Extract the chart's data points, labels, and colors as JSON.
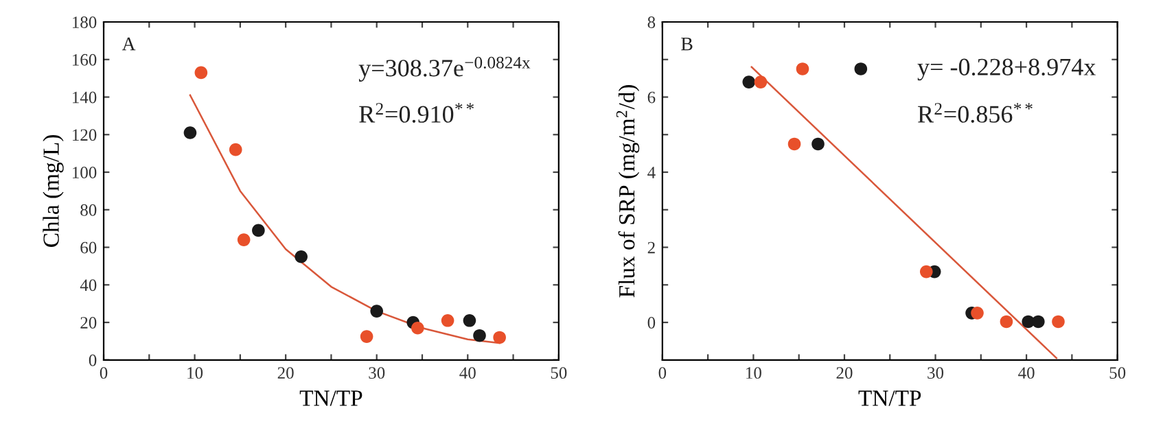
{
  "chart_data": [
    {
      "type": "scatter",
      "xlabel": "TN/TP",
      "ylabel": "Chla (mg/L)",
      "annotations": [
        "A",
        "y=308.37e$^{−0.0824x}$",
        "R$^{2}$=0.910$^{**}$"
      ],
      "xlim": [
        0,
        50
      ],
      "ylim": [
        0,
        180
      ],
      "xticks": [
        0,
        {
          "value": 5,
          "label": null
        },
        10,
        {
          "value": 15,
          "label": null
        },
        20,
        {
          "value": 25,
          "label": null
        },
        30,
        {
          "value": 35,
          "label": null
        },
        40,
        {
          "value": 45,
          "label": null
        },
        50
      ],
      "yticks": [
        0,
        20,
        40,
        60,
        80,
        100,
        120,
        140,
        160,
        180
      ],
      "grid": false,
      "legend": false,
      "marker": "circle",
      "series": [
        {
          "color": "#1a1a1a",
          "x": [
            9.5,
            17,
            21.7,
            30,
            34,
            40.2,
            41.3
          ],
          "values": [
            121,
            69,
            55,
            26,
            20,
            21,
            13
          ]
        },
        {
          "color": "#e8502a",
          "x": [
            10.7,
            14.5,
            15.4,
            28.9,
            34.5,
            37.8,
            43.5
          ],
          "values": [
            153,
            112,
            64,
            12.5,
            17,
            21,
            12
          ]
        },
        {
          "type": "line",
          "marker": "none",
          "color": "#d9573a",
          "x": [
            9.5,
            15,
            20,
            25,
            30,
            35,
            40,
            43.5
          ],
          "values": [
            141,
            90,
            59,
            39,
            26,
            17,
            11,
            9
          ]
        }
      ]
    },
    {
      "type": "scatter",
      "xlabel": "TN/TP",
      "ylabel": "Flux of SRP (mg/m$^{2}$/d)",
      "annotations": [
        "B",
        "y= -0.228+8.974x",
        "R$^{2}$=0.856$^{**}$"
      ],
      "xlim": [
        0,
        50
      ],
      "ylim": [
        -1,
        8
      ],
      "xticks": [
        0,
        {
          "value": 5,
          "label": null
        },
        10,
        {
          "value": 15,
          "label": null
        },
        20,
        {
          "value": 25,
          "label": null
        },
        30,
        {
          "value": 35,
          "label": null
        },
        40,
        {
          "value": 45,
          "label": null
        },
        50
      ],
      "yticks": [
        0,
        {
          "value": 1,
          "label": null
        },
        2,
        {
          "value": 3,
          "label": null
        },
        4,
        {
          "value": 5,
          "label": null
        },
        6,
        {
          "value": 7,
          "label": null
        },
        8
      ],
      "grid": false,
      "legend": false,
      "marker": "circle",
      "series": [
        {
          "color": "#1a1a1a",
          "x": [
            9.5,
            17.1,
            21.8,
            29.9,
            34,
            40.2,
            41.3
          ],
          "values": [
            6.4,
            4.75,
            6.75,
            1.35,
            0.25,
            0.02,
            0.02
          ]
        },
        {
          "color": "#e8502a",
          "x": [
            10.8,
            14.5,
            15.4,
            29,
            34.6,
            37.8,
            43.5
          ],
          "values": [
            6.4,
            4.75,
            6.75,
            1.35,
            0.25,
            0.02,
            0.02
          ]
        },
        {
          "type": "line",
          "marker": "none",
          "color": "#d9573a",
          "x": [
            9.8,
            43.3
          ],
          "values": [
            6.8,
            -0.95
          ]
        }
      ]
    }
  ]
}
